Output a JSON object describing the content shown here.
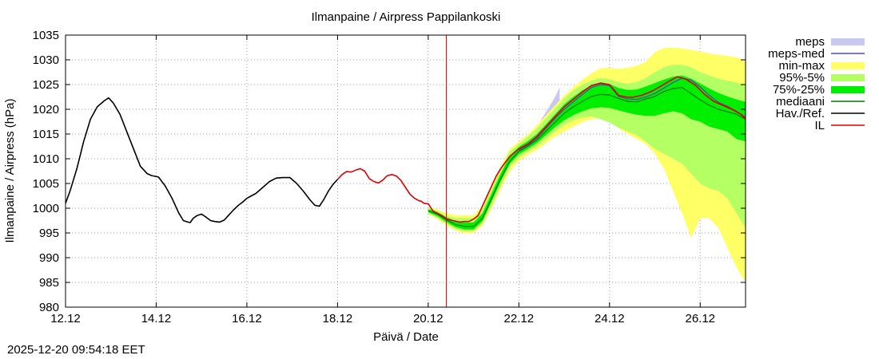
{
  "chart_data": {
    "type": "line",
    "title": "Ilmanpaine / Airpress Pappilankoski",
    "xlabel": "Päivä / Date",
    "ylabel": "Ilmanpaine / Airpress (hPa)",
    "xlim": [
      12.0,
      27.0
    ],
    "ylim": [
      980,
      1035
    ],
    "x_ticks": [
      {
        "value": 12,
        "label": "12.12"
      },
      {
        "value": 14,
        "label": "14.12"
      },
      {
        "value": 16,
        "label": "16.12"
      },
      {
        "value": 18,
        "label": "18.12"
      },
      {
        "value": 20,
        "label": "20.12"
      },
      {
        "value": 22,
        "label": "22.12"
      },
      {
        "value": 24,
        "label": "24.12"
      },
      {
        "value": 26,
        "label": "26.12"
      }
    ],
    "y_ticks": [
      980,
      985,
      990,
      995,
      1000,
      1005,
      1010,
      1015,
      1020,
      1025,
      1030,
      1035
    ],
    "grid": true,
    "current_time_marker": 20.4,
    "legend": {
      "placement": "outside-right-top",
      "entries": [
        {
          "label": "meps",
          "style": "band",
          "color": "#c8c8f0"
        },
        {
          "label": "meps-med",
          "style": "line",
          "color": "#4b4baf"
        },
        {
          "label": "min-max",
          "style": "band",
          "color": "#ffff66"
        },
        {
          "label": "95%-5%",
          "style": "band",
          "color": "#b4ff64"
        },
        {
          "label": "75%-25%",
          "style": "band",
          "color": "#00ee00"
        },
        {
          "label": "mediaani",
          "style": "line",
          "color": "#007800"
        },
        {
          "label": "Hav./Ref.",
          "style": "line",
          "color": "#000000"
        },
        {
          "label": "IL",
          "style": "line",
          "color": "#dd0000"
        }
      ]
    },
    "series": [
      {
        "name": "Hav./Ref.",
        "color": "#000000",
        "x": [
          12.0,
          12.1,
          12.25,
          12.4,
          12.55,
          12.7,
          12.85,
          12.95,
          13.05,
          13.2,
          13.35,
          13.5,
          13.65,
          13.8,
          13.9,
          14.05,
          14.2,
          14.35,
          14.5,
          14.6,
          14.7,
          14.75,
          14.82,
          14.9,
          15.0,
          15.1,
          15.2,
          15.3,
          15.4,
          15.5,
          15.6,
          15.7,
          15.8,
          15.9,
          16.0,
          16.1,
          16.2,
          16.35,
          16.5,
          16.65,
          16.8,
          16.95,
          17.1,
          17.25,
          17.4,
          17.5,
          17.6,
          17.7,
          17.8,
          17.9,
          18.0
        ],
        "y": [
          1001,
          1003.5,
          1008,
          1013.5,
          1018,
          1020.5,
          1021.7,
          1022.3,
          1021.3,
          1019,
          1015.5,
          1012,
          1008.5,
          1007,
          1006.6,
          1006.3,
          1004.5,
          1002,
          999,
          997.5,
          997.2,
          997.1,
          998,
          998.5,
          998.8,
          998.2,
          997.5,
          997.3,
          997.2,
          997.6,
          998.6,
          999.6,
          1000.5,
          1001.2,
          1002,
          1002.5,
          1003,
          1004.2,
          1005.4,
          1006.1,
          1006.2,
          1006.2,
          1005,
          1003.4,
          1001.6,
          1000.6,
          1000.4,
          1001.8,
          1003.5,
          1004.8,
          1005.8
        ]
      },
      {
        "name": "IL",
        "color": "#dd0000",
        "x": [
          18.0,
          18.1,
          18.2,
          18.3,
          18.4,
          18.5,
          18.6,
          18.7,
          18.8,
          18.9,
          19.0,
          19.1,
          19.2,
          19.3,
          19.4,
          19.5,
          19.6,
          19.7,
          19.8,
          19.85,
          19.9,
          20.0,
          20.1,
          20.2,
          20.3,
          20.4,
          20.5,
          20.6,
          20.7,
          20.8,
          20.9,
          21.0,
          21.1,
          21.2,
          21.3,
          21.4,
          21.5,
          21.6,
          21.8,
          22.0,
          22.2,
          22.4,
          22.6,
          22.8,
          23.0,
          23.2,
          23.4,
          23.6,
          23.8,
          24.0,
          24.2,
          24.35,
          24.5,
          24.7,
          24.9,
          25.1,
          25.3,
          25.5,
          25.7,
          25.9,
          26.1,
          26.3,
          26.5,
          26.7,
          26.9,
          27.0
        ],
        "y": [
          1005.8,
          1006.8,
          1007.4,
          1007.3,
          1007.7,
          1008,
          1007.5,
          1006,
          1005.4,
          1005.1,
          1005.7,
          1006.6,
          1006.8,
          1006.5,
          1005.6,
          1004.2,
          1002.8,
          1002,
          1001.5,
          1001.4,
          1001,
          1000.9,
          999.5,
          999,
          998.5,
          997.8,
          997.6,
          997.4,
          997.2,
          997.3,
          997.3,
          997.8,
          998.5,
          1000.5,
          1002.5,
          1004.5,
          1006.5,
          1008,
          1010.5,
          1012,
          1013,
          1014.5,
          1016.5,
          1018.5,
          1020.5,
          1022,
          1023.5,
          1024.8,
          1025.3,
          1025,
          1022.8,
          1022.5,
          1022.4,
          1022.8,
          1023.5,
          1024.5,
          1025.6,
          1026.6,
          1026,
          1024.8,
          1023,
          1021.6,
          1020.8,
          1020,
          1019,
          1018
        ]
      },
      {
        "name": "mediaani",
        "color": "#007800",
        "x": [
          20.0,
          20.2,
          20.4,
          20.6,
          20.8,
          21.0,
          21.2,
          21.4,
          21.6,
          21.8,
          22.0,
          22.2,
          22.4,
          22.6,
          22.8,
          23.0,
          23.2,
          23.4,
          23.6,
          23.8,
          24.0,
          24.2,
          24.4,
          24.6,
          24.8,
          25.0,
          25.2,
          25.4,
          25.6,
          25.8,
          26.0,
          26.2,
          26.4,
          26.6,
          26.8,
          27.0
        ],
        "y": [
          999.5,
          998.8,
          997.7,
          996.7,
          996.3,
          996.3,
          998,
          1002,
          1006,
          1009.5,
          1011.5,
          1012.6,
          1013.8,
          1015.6,
          1017.4,
          1019.2,
          1020.5,
          1021.6,
          1022.6,
          1023,
          1022.9,
          1022.2,
          1021.6,
          1021.5,
          1022.1,
          1022.6,
          1023.6,
          1024.2,
          1024.4,
          1023.2,
          1021.9,
          1020.8,
          1020,
          1019.5,
          1019,
          1018
        ]
      },
      {
        "name": "meps-med",
        "color": "#4b4baf",
        "x": [
          22.0,
          22.2,
          22.4,
          22.6,
          22.8,
          23.0,
          23.2,
          23.4,
          23.6,
          23.8,
          24.0,
          24.2,
          24.4,
          24.6,
          24.8,
          25.0,
          25.2,
          25.4,
          25.6,
          25.8,
          26.0,
          26.2,
          26.4,
          26.6,
          26.8,
          27.0
        ],
        "y": [
          1011.8,
          1012.8,
          1014.2,
          1016.2,
          1018.2,
          1020,
          1021.5,
          1023,
          1024.4,
          1025,
          1024.8,
          1022.6,
          1022.1,
          1022,
          1022.5,
          1023.2,
          1024.3,
          1025.4,
          1026.3,
          1025.9,
          1024.5,
          1022.8,
          1021.4,
          1020.6,
          1019.6,
          1018.4
        ]
      }
    ],
    "bands": [
      {
        "name": "meps",
        "color": "#c8c8f0",
        "x": [
          22.0,
          22.2,
          22.4,
          22.6,
          22.8,
          22.9
        ],
        "upper": [
          1012.5,
          1014,
          1016.5,
          1019.5,
          1022.5,
          1024.5
        ],
        "lower": [
          1011,
          1012.2,
          1013.6,
          1015.2,
          1017,
          1017.8
        ]
      },
      {
        "name": "min-max",
        "color": "#ffff66",
        "x": [
          20.0,
          20.2,
          20.4,
          20.6,
          20.8,
          21.0,
          21.2,
          21.4,
          21.6,
          21.8,
          22.0,
          22.2,
          22.4,
          22.6,
          22.8,
          23.0,
          23.2,
          23.4,
          23.6,
          23.8,
          24.0,
          24.2,
          24.4,
          24.6,
          24.8,
          25.0,
          25.2,
          25.4,
          25.6,
          25.8,
          26.0,
          26.2,
          26.4,
          26.6,
          26.8,
          27.0
        ],
        "upper": [
          1000.2,
          999.8,
          999,
          998.6,
          998.6,
          998.6,
          1000.5,
          1004.5,
          1008.5,
          1012,
          1013.5,
          1015,
          1016.8,
          1018.8,
          1020.8,
          1022.8,
          1024.5,
          1026,
          1027.3,
          1028.3,
          1028.4,
          1028.2,
          1028.4,
          1028.8,
          1029.6,
          1031.6,
          1032.4,
          1032.5,
          1032.3,
          1032,
          1031.7,
          1031.3,
          1031,
          1030.8,
          1030.5,
          1029.8
        ],
        "lower": [
          998.8,
          997.8,
          996.5,
          995.5,
          994.9,
          995,
          996.5,
          1000,
          1003.8,
          1007.5,
          1009.5,
          1010.8,
          1011.8,
          1013.2,
          1014.5,
          1015.5,
          1016.5,
          1017.4,
          1018,
          1018.2,
          1017.5,
          1016.2,
          1015,
          1014,
          1013,
          1011,
          1008,
          1003.5,
          999,
          994,
          998,
          998,
          996,
          992,
          988,
          985
        ]
      },
      {
        "name": "95%-5%",
        "color": "#b4ff64",
        "x": [
          20.0,
          20.2,
          20.4,
          20.6,
          20.8,
          21.0,
          21.2,
          21.4,
          21.6,
          21.8,
          22.0,
          22.2,
          22.4,
          22.6,
          22.8,
          23.0,
          23.2,
          23.4,
          23.6,
          23.8,
          24.0,
          24.2,
          24.4,
          24.6,
          24.8,
          25.0,
          25.2,
          25.4,
          25.6,
          25.8,
          26.0,
          26.2,
          26.4,
          26.6,
          26.8,
          27.0
        ],
        "upper": [
          1000,
          999.5,
          998.5,
          998,
          998,
          998,
          1000,
          1004,
          1008,
          1011.5,
          1013,
          1014.5,
          1016.2,
          1018.2,
          1020.2,
          1022.2,
          1023.8,
          1025,
          1025.8,
          1026.3,
          1026.1,
          1025.5,
          1025.2,
          1025.5,
          1026.3,
          1027.5,
          1028.5,
          1029,
          1029,
          1028.5,
          1027.5,
          1026.8,
          1026.2,
          1025.8,
          1025.4,
          1025
        ],
        "lower": [
          999,
          998,
          996.8,
          995.8,
          995.3,
          995.4,
          997,
          1000.6,
          1004.6,
          1008.3,
          1010.2,
          1011.4,
          1012.5,
          1014,
          1015.5,
          1016.8,
          1017.8,
          1018.3,
          1018.6,
          1018,
          1017.3,
          1016.3,
          1015.5,
          1014.8,
          1013.5,
          1012,
          1011,
          1010,
          1009,
          1007,
          1005,
          1004,
          1003.5,
          1002,
          999,
          996
        ]
      },
      {
        "name": "75%-25%",
        "color": "#00ee00",
        "x": [
          20.0,
          20.2,
          20.4,
          20.6,
          20.8,
          21.0,
          21.2,
          21.4,
          21.6,
          21.8,
          22.0,
          22.2,
          22.4,
          22.6,
          22.8,
          23.0,
          23.2,
          23.4,
          23.6,
          23.8,
          24.0,
          24.2,
          24.4,
          24.6,
          24.8,
          25.0,
          25.2,
          25.4,
          25.6,
          25.8,
          26.0,
          26.2,
          26.4,
          26.6,
          26.8,
          27.0
        ],
        "upper": [
          999.8,
          999.2,
          998.2,
          997.4,
          997.1,
          997.1,
          999,
          1003,
          1007,
          1010.6,
          1012.4,
          1013.6,
          1015,
          1017,
          1019,
          1021,
          1022.5,
          1023.8,
          1024.8,
          1025.2,
          1025.1,
          1024.3,
          1023.9,
          1024,
          1024.6,
          1025.3,
          1026,
          1026.6,
          1026.8,
          1026.2,
          1025.2,
          1024.2,
          1023.3,
          1022.6,
          1022,
          1021.5
        ],
        "lower": [
          999.2,
          998.4,
          997.2,
          996.2,
          995.7,
          995.7,
          997.4,
          1001.4,
          1005.4,
          1009,
          1010.9,
          1012,
          1013.2,
          1014.8,
          1016.4,
          1017.8,
          1018.8,
          1019.6,
          1020.2,
          1020.4,
          1020.3,
          1019.8,
          1019.3,
          1018.9,
          1018.7,
          1018.7,
          1019.2,
          1019.6,
          1019.2,
          1018,
          1017.5,
          1016.5,
          1016,
          1015.5,
          1014,
          1013.5
        ]
      }
    ]
  },
  "footer": {
    "timestamp": "2025-12-20 09:54:18 EET"
  }
}
